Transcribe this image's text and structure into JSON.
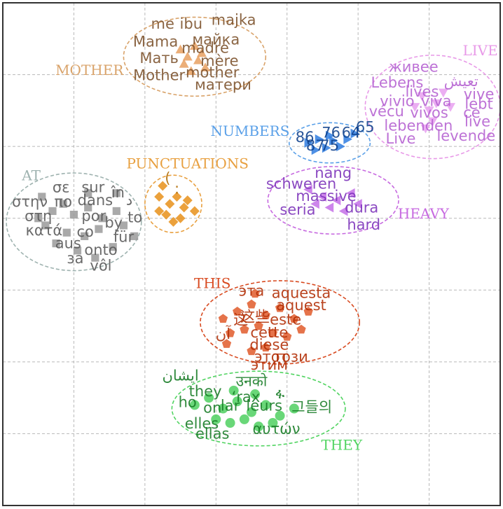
{
  "chart_data": {
    "type": "scatter",
    "title": "",
    "xlabel": "",
    "ylabel": "",
    "grid": true,
    "xlim": [
      0,
      7
    ],
    "ylim": [
      0,
      7
    ],
    "clusters": [
      {
        "name": "MOTHER",
        "color": "#7a4f28",
        "label_color": "#d9a36a",
        "marker": "triangle",
        "marker_color": "#e8a060",
        "center": [
          2.7,
          6.25
        ],
        "radii": [
          1.0,
          0.55
        ],
        "label_pos": [
          1.22,
          6.05
        ],
        "points": [
          [
            2.5,
            6.35
          ],
          [
            2.6,
            6.25
          ],
          [
            2.7,
            6.4
          ],
          [
            2.8,
            6.3
          ],
          [
            2.55,
            6.15
          ],
          [
            2.75,
            6.2
          ],
          [
            2.65,
            6.05
          ],
          [
            2.85,
            6.1
          ]
        ],
        "words": [
          {
            "text": "me",
            "x": 2.25,
            "y": 6.7
          },
          {
            "text": "ibu",
            "x": 2.65,
            "y": 6.7
          },
          {
            "text": "majka",
            "x": 3.25,
            "y": 6.75
          },
          {
            "text": "Mama",
            "x": 2.15,
            "y": 6.45
          },
          {
            "text": "майка",
            "x": 3.0,
            "y": 6.48
          },
          {
            "text": "madre",
            "x": 2.85,
            "y": 6.36
          },
          {
            "text": "Мать",
            "x": 2.2,
            "y": 6.22
          },
          {
            "text": "mère",
            "x": 3.05,
            "y": 6.18
          },
          {
            "text": "Mother",
            "x": 2.2,
            "y": 5.98
          },
          {
            "text": "mother",
            "x": 2.95,
            "y": 6.02
          },
          {
            "text": "матери",
            "x": 3.1,
            "y": 5.85
          }
        ]
      },
      {
        "name": "LIVE",
        "color": "#b45fd0",
        "label_color": "#e89ae8",
        "marker": "triangle-down",
        "marker_color": "#e8a0f0",
        "center": [
          6.05,
          5.55
        ],
        "radii": [
          0.95,
          0.72
        ],
        "label_pos": [
          6.72,
          6.32
        ],
        "points": [
          [
            5.9,
            5.7
          ],
          [
            6.1,
            5.6
          ],
          [
            6.2,
            5.75
          ],
          [
            6.0,
            5.5
          ],
          [
            5.8,
            5.55
          ],
          [
            6.3,
            5.55
          ],
          [
            6.05,
            5.35
          ],
          [
            5.95,
            5.25
          ]
        ],
        "words": [
          {
            "text": "живее",
            "x": 5.78,
            "y": 6.1
          },
          {
            "text": "Lebens",
            "x": 5.55,
            "y": 5.88
          },
          {
            "text": "تعيش",
            "x": 6.45,
            "y": 5.9
          },
          {
            "text": "lives",
            "x": 5.9,
            "y": 5.75
          },
          {
            "text": "vive",
            "x": 6.7,
            "y": 5.72
          },
          {
            "text": "vivio",
            "x": 5.55,
            "y": 5.62
          },
          {
            "text": "viva",
            "x": 6.1,
            "y": 5.62
          },
          {
            "text": "lebt",
            "x": 6.7,
            "y": 5.58
          },
          {
            "text": "vécu",
            "x": 5.4,
            "y": 5.48
          },
          {
            "text": "vivos",
            "x": 6.0,
            "y": 5.46
          },
          {
            "text": "ce",
            "x": 6.6,
            "y": 5.46
          },
          {
            "text": "live",
            "x": 6.68,
            "y": 5.34
          },
          {
            "text": "lebenden",
            "x": 5.85,
            "y": 5.28
          },
          {
            "text": "levende",
            "x": 6.52,
            "y": 5.14
          },
          {
            "text": "Live",
            "x": 5.6,
            "y": 5.1
          }
        ]
      },
      {
        "name": "NUMBERS",
        "color": "#0b3d8a",
        "label_color": "#5aa0e8",
        "marker": "triangle-right",
        "marker_color": "#2f7de0",
        "center": [
          4.6,
          5.05
        ],
        "radii": [
          0.57,
          0.28
        ],
        "label_pos": [
          3.48,
          5.2
        ],
        "points": [
          [
            4.3,
            5.05
          ],
          [
            4.45,
            5.1
          ],
          [
            4.55,
            4.98
          ],
          [
            4.65,
            5.08
          ],
          [
            4.75,
            5.0
          ],
          [
            4.85,
            5.1
          ],
          [
            4.4,
            4.95
          ],
          [
            4.6,
            5.15
          ],
          [
            4.95,
            5.18
          ]
        ],
        "words": [
          {
            "text": "86",
            "x": 4.25,
            "y": 5.12
          },
          {
            "text": "76",
            "x": 4.62,
            "y": 5.18
          },
          {
            "text": "64",
            "x": 4.9,
            "y": 5.18
          },
          {
            "text": "65",
            "x": 5.1,
            "y": 5.26
          },
          {
            "text": "87",
            "x": 4.4,
            "y": 5.0
          },
          {
            "text": "75",
            "x": 4.6,
            "y": 5.0
          }
        ]
      },
      {
        "name": "HEAVY",
        "color": "#7a2fb8",
        "label_color": "#c76ae0",
        "marker": "triangle-left",
        "marker_color": "#c470e8",
        "center": [
          4.65,
          4.25
        ],
        "radii": [
          0.92,
          0.47
        ],
        "label_pos": [
          5.92,
          4.05
        ],
        "points": [
          [
            4.3,
            4.4
          ],
          [
            4.5,
            4.3
          ],
          [
            4.7,
            4.25
          ],
          [
            4.9,
            4.35
          ],
          [
            4.6,
            4.15
          ],
          [
            4.8,
            4.1
          ],
          [
            5.0,
            4.2
          ],
          [
            4.4,
            4.2
          ]
        ],
        "words": [
          {
            "text": "nang",
            "x": 4.65,
            "y": 4.62
          },
          {
            "text": "schweren",
            "x": 4.2,
            "y": 4.47
          },
          {
            "text": "massive",
            "x": 4.55,
            "y": 4.3
          },
          {
            "text": "seria",
            "x": 4.15,
            "y": 4.11
          },
          {
            "text": "dura",
            "x": 5.05,
            "y": 4.14
          },
          {
            "text": "hard",
            "x": 5.08,
            "y": 3.9
          }
        ]
      },
      {
        "name": "PUNCTUATIONS",
        "color": "#b06a00",
        "label_color": "#e8a040",
        "marker": "diamond",
        "marker_color": "#e8901a",
        "center": [
          2.4,
          4.2
        ],
        "radii": [
          0.4,
          0.4
        ],
        "label_pos": [
          2.6,
          4.75
        ],
        "points": [
          [
            2.2,
            4.3
          ],
          [
            2.35,
            4.2
          ],
          [
            2.45,
            4.3
          ],
          [
            2.55,
            4.15
          ],
          [
            2.3,
            4.05
          ],
          [
            2.5,
            4.0
          ],
          [
            2.2,
            4.1
          ],
          [
            2.4,
            3.95
          ],
          [
            2.7,
            4.1
          ],
          [
            2.25,
            4.45
          ],
          [
            2.6,
            4.25
          ]
        ],
        "words": [
          {
            "text": "(",
            "x": 2.32,
            "y": 4.55
          },
          {
            "text": ":",
            "x": 2.45,
            "y": 4.4
          }
        ]
      },
      {
        "name": "AT",
        "color": "#555555",
        "label_color": "#9fb3b0",
        "marker": "square",
        "marker_color": "#9a9a9a",
        "center": [
          1.0,
          3.95
        ],
        "radii": [
          0.95,
          0.68
        ],
        "label_pos": [
          0.4,
          4.58
        ],
        "points": [
          [
            0.55,
            4.3
          ],
          [
            0.7,
            4.1
          ],
          [
            0.85,
            4.2
          ],
          [
            1.0,
            4.05
          ],
          [
            1.2,
            4.15
          ],
          [
            1.4,
            4.0
          ],
          [
            1.6,
            4.1
          ],
          [
            0.6,
            3.9
          ],
          [
            0.9,
            3.8
          ],
          [
            1.15,
            3.75
          ],
          [
            1.35,
            3.85
          ],
          [
            1.7,
            3.9
          ],
          [
            0.75,
            3.65
          ],
          [
            1.05,
            3.55
          ],
          [
            1.3,
            3.45
          ],
          [
            1.55,
            3.6
          ],
          [
            1.85,
            3.75
          ],
          [
            0.5,
            4.0
          ],
          [
            1.6,
            4.35
          ],
          [
            1.2,
            4.35
          ]
        ],
        "words": [
          {
            "text": "σε",
            "x": 0.82,
            "y": 4.42
          },
          {
            "text": "sur",
            "x": 1.27,
            "y": 4.42
          },
          {
            "text": "în",
            "x": 1.62,
            "y": 4.35
          },
          {
            "text": "στην",
            "x": 0.38,
            "y": 4.22
          },
          {
            "text": "πο",
            "x": 0.85,
            "y": 4.22
          },
          {
            "text": "dans",
            "x": 1.3,
            "y": 4.24
          },
          {
            "text": "د",
            "x": 1.78,
            "y": 4.24
          },
          {
            "text": "στη",
            "x": 0.5,
            "y": 4.02
          },
          {
            "text": "por",
            "x": 1.28,
            "y": 4.02
          },
          {
            "text": "to",
            "x": 1.86,
            "y": 4.0
          },
          {
            "text": "by",
            "x": 1.56,
            "y": 3.93
          },
          {
            "text": "κατά",
            "x": 0.58,
            "y": 3.82
          },
          {
            "text": "co",
            "x": 1.16,
            "y": 3.8
          },
          {
            "text": "für",
            "x": 1.7,
            "y": 3.73
          },
          {
            "text": "aus",
            "x": 0.92,
            "y": 3.64
          },
          {
            "text": "onto",
            "x": 1.38,
            "y": 3.55
          },
          {
            "text": "за",
            "x": 1.02,
            "y": 3.43
          },
          {
            "text": "vôl",
            "x": 1.38,
            "y": 3.33
          }
        ]
      },
      {
        "name": "THIS",
        "color": "#b02a00",
        "label_color": "#d84a20",
        "marker": "pentagon",
        "marker_color": "#e05a2a",
        "center": [
          3.9,
          2.55
        ],
        "radii": [
          1.12,
          0.58
        ],
        "label_pos": [
          2.95,
          3.08
        ],
        "points": [
          [
            3.1,
            2.6
          ],
          [
            3.3,
            2.7
          ],
          [
            3.5,
            2.8
          ],
          [
            3.7,
            2.65
          ],
          [
            3.9,
            2.75
          ],
          [
            4.1,
            2.6
          ],
          [
            4.3,
            2.7
          ],
          [
            3.2,
            2.4
          ],
          [
            3.4,
            2.45
          ],
          [
            3.6,
            2.5
          ],
          [
            3.8,
            2.4
          ],
          [
            4.0,
            2.35
          ],
          [
            4.2,
            2.45
          ],
          [
            3.55,
            2.95
          ],
          [
            3.5,
            2.15
          ],
          [
            3.7,
            2.2
          ],
          [
            3.15,
            2.25
          ]
        ],
        "words": [
          {
            "text": "эта",
            "x": 3.5,
            "y": 2.98
          },
          {
            "text": "aquesta",
            "x": 4.2,
            "y": 2.95
          },
          {
            "text": "aquest",
            "x": 4.2,
            "y": 2.78
          },
          {
            "text": "这",
            "x": 3.35,
            "y": 2.58
          },
          {
            "text": "这些",
            "x": 3.55,
            "y": 2.62
          },
          {
            "text": "este",
            "x": 3.98,
            "y": 2.58
          },
          {
            "text": "آن",
            "x": 3.1,
            "y": 2.38
          },
          {
            "text": "cette",
            "x": 3.75,
            "y": 2.4
          },
          {
            "text": "diese",
            "x": 3.75,
            "y": 2.23
          },
          {
            "text": "този",
            "x": 4.05,
            "y": 2.06
          },
          {
            "text": "этим",
            "x": 3.75,
            "y": 1.95
          },
          {
            "text": "этот",
            "x": 3.78,
            "y": 2.06
          }
        ]
      },
      {
        "name": "THEY",
        "color": "#137a22",
        "label_color": "#52d462",
        "marker": "circle",
        "marker_color": "#4fd060",
        "center": [
          3.6,
          1.35
        ],
        "radii": [
          1.22,
          0.52
        ],
        "label_pos": [
          4.77,
          0.83
        ],
        "points": [
          [
            2.7,
            1.4
          ],
          [
            2.9,
            1.5
          ],
          [
            3.1,
            1.35
          ],
          [
            3.3,
            1.45
          ],
          [
            3.5,
            1.3
          ],
          [
            3.7,
            1.4
          ],
          [
            3.9,
            1.25
          ],
          [
            4.1,
            1.35
          ],
          [
            3.0,
            1.2
          ],
          [
            3.2,
            1.15
          ],
          [
            3.4,
            1.2
          ],
          [
            3.6,
            1.1
          ],
          [
            3.8,
            1.15
          ],
          [
            3.25,
            1.6
          ],
          [
            3.55,
            1.55
          ]
        ],
        "words": [
          {
            "text": "ایشان",
            "x": 2.5,
            "y": 1.8
          },
          {
            "text": "उनको",
            "x": 3.5,
            "y": 1.72
          },
          {
            "text": "they",
            "x": 2.85,
            "y": 1.58
          },
          {
            "text": "ʻrax",
            "x": 3.42,
            "y": 1.5
          },
          {
            "text": "ፋ",
            "x": 3.9,
            "y": 1.55
          },
          {
            "text": "ho",
            "x": 2.6,
            "y": 1.43
          },
          {
            "text": "on",
            "x": 2.95,
            "y": 1.35
          },
          {
            "text": "lar",
            "x": 3.2,
            "y": 1.38
          },
          {
            "text": "leurs",
            "x": 3.68,
            "y": 1.38
          },
          {
            "text": "그들의",
            "x": 4.35,
            "y": 1.36
          },
          {
            "text": "elles",
            "x": 2.8,
            "y": 1.13
          },
          {
            "text": "ellas",
            "x": 2.95,
            "y": 0.99
          },
          {
            "text": "αυτών",
            "x": 3.85,
            "y": 1.06
          }
        ]
      }
    ]
  }
}
